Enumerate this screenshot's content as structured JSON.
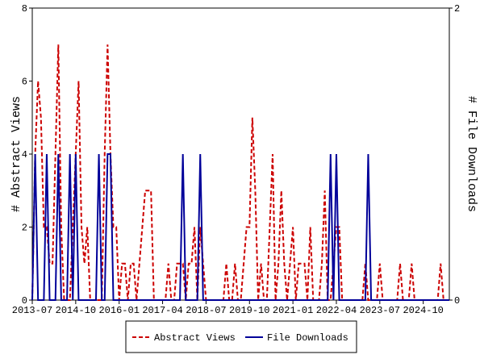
{
  "chart_data": {
    "type": "line",
    "y_label": "# Abstract Views",
    "y2_label": "# File Downloads",
    "x": [
      "2013-07",
      "2013-08",
      "2013-09",
      "2013-10",
      "2013-11",
      "2013-12",
      "2014-01",
      "2014-02",
      "2014-03",
      "2014-04",
      "2014-05",
      "2014-06",
      "2014-07",
      "2014-08",
      "2014-09",
      "2014-10",
      "2014-11",
      "2014-12",
      "2015-01",
      "2015-02",
      "2015-03",
      "2015-04",
      "2015-05",
      "2015-06",
      "2015-07",
      "2015-08",
      "2015-09",
      "2015-10",
      "2015-11",
      "2015-12",
      "2016-01",
      "2016-02",
      "2016-03",
      "2016-04",
      "2016-05",
      "2016-06",
      "2016-07",
      "2016-08",
      "2016-09",
      "2016-10",
      "2016-11",
      "2016-12",
      "2017-01",
      "2017-02",
      "2017-03",
      "2017-04",
      "2017-05",
      "2017-06",
      "2017-07",
      "2017-08",
      "2017-09",
      "2017-10",
      "2017-11",
      "2017-12",
      "2018-01",
      "2018-02",
      "2018-03",
      "2018-04",
      "2018-05",
      "2018-06",
      "2018-07",
      "2018-08",
      "2018-09",
      "2018-10",
      "2018-11",
      "2018-12",
      "2019-01",
      "2019-02",
      "2019-03",
      "2019-04",
      "2019-05",
      "2019-06",
      "2019-07",
      "2019-08",
      "2019-09",
      "2019-10",
      "2019-11",
      "2019-12",
      "2020-01",
      "2020-02",
      "2020-03",
      "2020-04",
      "2020-05",
      "2020-06",
      "2020-07",
      "2020-08",
      "2020-09",
      "2020-10",
      "2020-11",
      "2020-12",
      "2021-01",
      "2021-02",
      "2021-03",
      "2021-04",
      "2021-05",
      "2021-06",
      "2021-07",
      "2021-08",
      "2021-09",
      "2021-10",
      "2021-11",
      "2021-12",
      "2022-01",
      "2022-02",
      "2022-03",
      "2022-04",
      "2022-05",
      "2022-06",
      "2022-07",
      "2022-08",
      "2022-09",
      "2022-10",
      "2022-11",
      "2022-12",
      "2023-01",
      "2023-02",
      "2023-03",
      "2023-04",
      "2023-05",
      "2023-06",
      "2023-07",
      "2023-08",
      "2023-09",
      "2023-10",
      "2023-11",
      "2023-12",
      "2024-01",
      "2024-02",
      "2024-03",
      "2024-04",
      "2024-05",
      "2024-06",
      "2024-07",
      "2024-08",
      "2024-09",
      "2024-10",
      "2024-11",
      "2024-12",
      "2025-01",
      "2025-02",
      "2025-03",
      "2025-04",
      "2025-05",
      "2025-06",
      "2025-07"
    ],
    "series": [
      {
        "name": "Abstract Views",
        "color": "#cc0000",
        "dashed": true,
        "axis": "y",
        "values": [
          0,
          4,
          6,
          5,
          2,
          2,
          1,
          1,
          4,
          7,
          2,
          0,
          0,
          0,
          2,
          4,
          6,
          2,
          1,
          2,
          0,
          0,
          0,
          0,
          0,
          4,
          7,
          4,
          2,
          2,
          0,
          1,
          1,
          0,
          1,
          1,
          0,
          1,
          2,
          3,
          3,
          3,
          0,
          0,
          0,
          0,
          0,
          1,
          0,
          0,
          1,
          1,
          1,
          0,
          1,
          1,
          2,
          0,
          2,
          1,
          0,
          0,
          0,
          0,
          0,
          0,
          0,
          1,
          0,
          0,
          1,
          0,
          0,
          1,
          2,
          2,
          5,
          3,
          0,
          1,
          0,
          0,
          2,
          4,
          0,
          1,
          3,
          1,
          0,
          1,
          2,
          0,
          1,
          1,
          1,
          0,
          2,
          0,
          0,
          0,
          1,
          3,
          0,
          0,
          1,
          2,
          2,
          0,
          0,
          0,
          0,
          0,
          0,
          0,
          0,
          1,
          0,
          0,
          0,
          0,
          1,
          0,
          0,
          0,
          0,
          0,
          0,
          1,
          0,
          0,
          0,
          1,
          0,
          0,
          0,
          0,
          0,
          0,
          0,
          0,
          0,
          1,
          0,
          0,
          0
        ]
      },
      {
        "name": "File Downloads",
        "color": "#000099",
        "dashed": false,
        "axis": "y2",
        "values": [
          0,
          1,
          0,
          0,
          0,
          1,
          0,
          0,
          0,
          1,
          0,
          0,
          0,
          1,
          0,
          1,
          0,
          0,
          0,
          0,
          0,
          0,
          0,
          1,
          0,
          0,
          1,
          1,
          0,
          0,
          0,
          0,
          0,
          0,
          0,
          0,
          0,
          0,
          0,
          0,
          0,
          0,
          0,
          0,
          0,
          0,
          0,
          0,
          0,
          0,
          0,
          0,
          1,
          0,
          0,
          0,
          0,
          0,
          1,
          0,
          0,
          0,
          0,
          0,
          0,
          0,
          0,
          0,
          0,
          0,
          0,
          0,
          0,
          0,
          0,
          0,
          0,
          0,
          0,
          0,
          0,
          0,
          0,
          0,
          0,
          0,
          0,
          0,
          0,
          0,
          0,
          0,
          0,
          0,
          0,
          0,
          0,
          0,
          0,
          0,
          0,
          0,
          0,
          1,
          0,
          1,
          0,
          0,
          0,
          0,
          0,
          0,
          0,
          0,
          0,
          0,
          1,
          0,
          0,
          0,
          0,
          0,
          0,
          0,
          0,
          0,
          0,
          0,
          0,
          0,
          0,
          0,
          0,
          0,
          0,
          0,
          0,
          0,
          0,
          0,
          0,
          0,
          0,
          0,
          0
        ]
      }
    ],
    "ylim": [
      0,
      8
    ],
    "yticks": [
      0,
      2,
      4,
      6,
      8
    ],
    "y2lim": [
      0,
      2
    ],
    "y2ticks": [
      0,
      2
    ],
    "xticks": [
      "2013-07",
      "2014-10",
      "2016-01",
      "2017-04",
      "2018-07",
      "2019-10",
      "2021-01",
      "2022-04",
      "2023-07",
      "2024-10"
    ],
    "legend": "bottom"
  }
}
